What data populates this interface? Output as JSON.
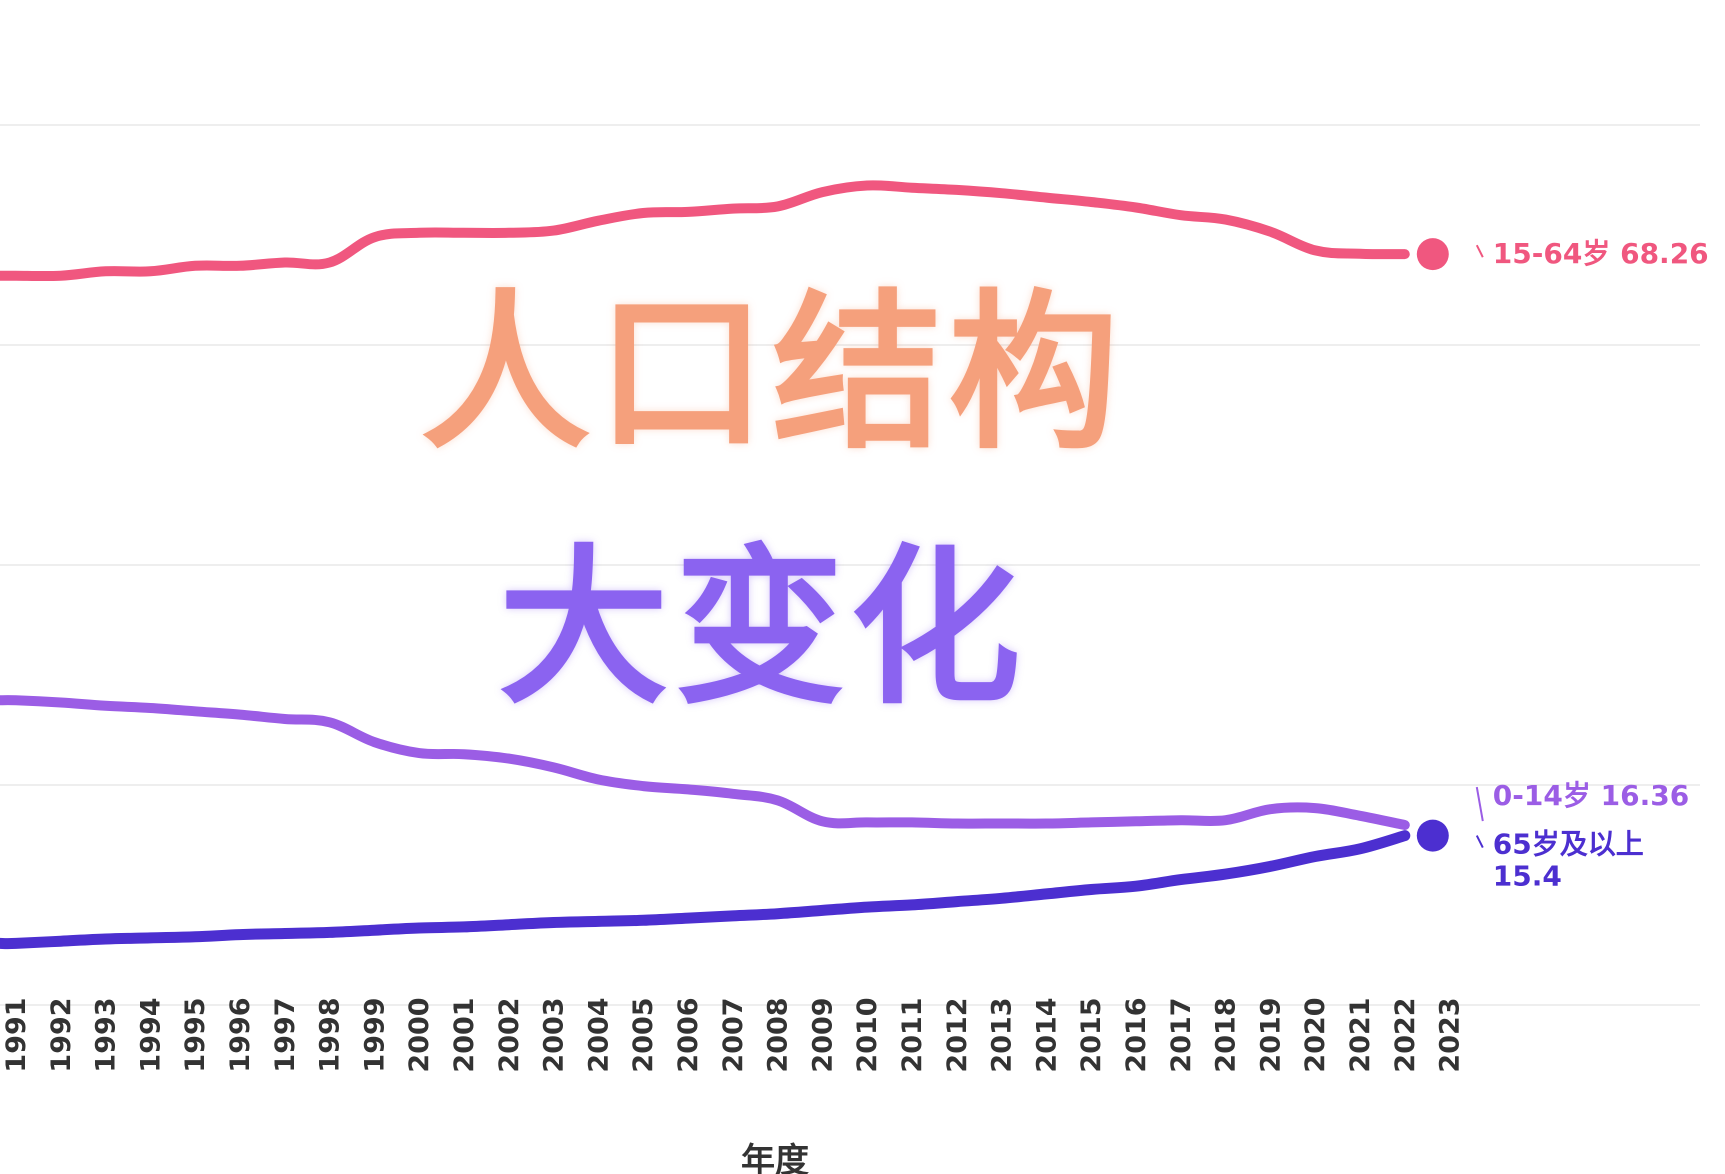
{
  "overlay": {
    "title_line1": "人口结构",
    "title_line2": "大变化"
  },
  "chart_data": {
    "type": "line",
    "xlabel": "年度",
    "ylabel": "",
    "grid": true,
    "ylim": [
      0,
      80
    ],
    "categories": [
      "1991",
      "1992",
      "1993",
      "1994",
      "1995",
      "1996",
      "1997",
      "1998",
      "1999",
      "2000",
      "2001",
      "2002",
      "2003",
      "2004",
      "2005",
      "2006",
      "2007",
      "2008",
      "2009",
      "2010",
      "2011",
      "2012",
      "2013",
      "2014",
      "2015",
      "2016",
      "2017",
      "2018",
      "2019",
      "2020",
      "2021",
      "2022",
      "2023"
    ],
    "series": [
      {
        "name": "15-64岁",
        "color": "#f0577f",
        "end_label": "15-64岁 68.26",
        "values": [
          66.3,
          66.3,
          66.7,
          66.7,
          67.2,
          67.2,
          67.5,
          67.5,
          69.8,
          70.2,
          70.2,
          70.2,
          70.4,
          71.3,
          72.0,
          72.1,
          72.4,
          72.6,
          73.9,
          74.5,
          74.3,
          74.1,
          73.8,
          73.4,
          73.0,
          72.5,
          71.8,
          71.4,
          70.3,
          68.6,
          68.3,
          68.26,
          null
        ],
        "end_point": true
      },
      {
        "name": "0-14岁",
        "color": "#9b5de5",
        "end_label": "0-14岁 16.36",
        "values": [
          27.7,
          27.5,
          27.2,
          27.0,
          26.7,
          26.4,
          26.0,
          25.7,
          23.9,
          22.9,
          22.8,
          22.4,
          21.6,
          20.5,
          19.9,
          19.6,
          19.2,
          18.6,
          16.7,
          16.6,
          16.6,
          16.5,
          16.5,
          16.5,
          16.6,
          16.7,
          16.8,
          16.8,
          17.8,
          17.9,
          17.2,
          16.36,
          null
        ],
        "end_point": false
      },
      {
        "name": "65岁及以上",
        "color": "#4c2fd0",
        "end_label": "65岁及以上",
        "end_value_label": "15.4",
        "values": [
          5.6,
          5.8,
          6.0,
          6.1,
          6.2,
          6.4,
          6.5,
          6.6,
          6.8,
          7.0,
          7.1,
          7.3,
          7.5,
          7.6,
          7.7,
          7.9,
          8.1,
          8.3,
          8.6,
          8.9,
          9.1,
          9.4,
          9.7,
          10.1,
          10.5,
          10.8,
          11.4,
          11.9,
          12.6,
          13.5,
          14.2,
          15.4,
          null
        ],
        "end_point": true
      }
    ]
  }
}
